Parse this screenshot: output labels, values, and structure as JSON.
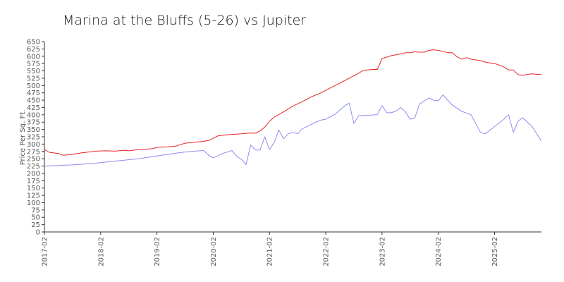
{
  "chart_data": {
    "type": "line",
    "title": "Marina at the Bluffs (5-26) vs Jupiter",
    "xlabel": "",
    "ylabel": "Price Per Sq. Ft.",
    "ylim": [
      0,
      650
    ],
    "yticks": [
      0,
      25,
      50,
      75,
      100,
      125,
      150,
      175,
      200,
      225,
      250,
      275,
      300,
      325,
      350,
      375,
      400,
      425,
      450,
      475,
      500,
      525,
      550,
      575,
      600,
      625,
      650
    ],
    "xlim": [
      "2017-02",
      "2025-12"
    ],
    "xticks": [
      "2017-02",
      "2018-02",
      "2019-02",
      "2020-02",
      "2021-02",
      "2022-02",
      "2023-02",
      "2024-02",
      "2025-02"
    ],
    "grid": false,
    "legend": "none",
    "series": [
      {
        "color": "#e8242a",
        "points": [
          [
            "2017-02",
            282
          ],
          [
            "2017-03",
            272
          ],
          [
            "2017-05",
            268
          ],
          [
            "2017-06",
            262
          ],
          [
            "2017-08",
            265
          ],
          [
            "2017-10",
            270
          ],
          [
            "2018-01",
            276
          ],
          [
            "2018-03",
            277
          ],
          [
            "2018-05",
            276
          ],
          [
            "2018-07",
            279
          ],
          [
            "2018-08",
            277
          ],
          [
            "2018-10",
            281
          ],
          [
            "2019-01",
            284
          ],
          [
            "2019-02",
            289
          ],
          [
            "2019-04",
            290
          ],
          [
            "2019-06",
            293
          ],
          [
            "2019-08",
            303
          ],
          [
            "2019-11",
            308
          ],
          [
            "2020-01",
            312
          ],
          [
            "2020-03",
            328
          ],
          [
            "2020-05",
            332
          ],
          [
            "2020-08",
            335
          ],
          [
            "2020-10",
            338
          ],
          [
            "2020-11",
            337
          ],
          [
            "2020-12",
            345
          ],
          [
            "2021-01",
            358
          ],
          [
            "2021-02",
            378
          ],
          [
            "2021-03",
            392
          ],
          [
            "2021-05",
            410
          ],
          [
            "2021-07",
            430
          ],
          [
            "2021-09",
            445
          ],
          [
            "2021-11",
            462
          ],
          [
            "2022-01",
            475
          ],
          [
            "2022-03",
            492
          ],
          [
            "2022-05",
            508
          ],
          [
            "2022-07",
            525
          ],
          [
            "2022-09",
            542
          ],
          [
            "2022-10",
            552
          ],
          [
            "2022-12",
            555
          ],
          [
            "2023-01",
            555
          ],
          [
            "2023-02",
            592
          ],
          [
            "2023-03",
            597
          ],
          [
            "2023-04",
            602
          ],
          [
            "2023-05",
            605
          ],
          [
            "2023-06",
            608
          ],
          [
            "2023-07",
            612
          ],
          [
            "2023-08",
            612
          ],
          [
            "2023-09",
            615
          ],
          [
            "2023-10",
            614
          ],
          [
            "2023-11",
            614
          ],
          [
            "2023-12",
            620
          ],
          [
            "2024-01",
            622
          ],
          [
            "2024-02",
            620
          ],
          [
            "2024-03",
            617
          ],
          [
            "2024-04",
            612
          ],
          [
            "2024-05",
            612
          ],
          [
            "2024-06",
            598
          ],
          [
            "2024-07",
            590
          ],
          [
            "2024-08",
            595
          ],
          [
            "2024-09",
            590
          ],
          [
            "2024-11",
            585
          ],
          [
            "2024-12",
            580
          ],
          [
            "2025-01",
            577
          ],
          [
            "2025-02",
            575
          ],
          [
            "2025-03",
            570
          ],
          [
            "2025-04",
            563
          ],
          [
            "2025-05",
            553
          ],
          [
            "2025-06",
            553
          ],
          [
            "2025-07",
            537
          ],
          [
            "2025-08",
            535
          ],
          [
            "2025-09",
            538
          ],
          [
            "2025-10",
            540
          ],
          [
            "2025-12",
            537
          ]
        ]
      },
      {
        "color": "#8c8cf2",
        "points": [
          [
            "2017-02",
            225
          ],
          [
            "2017-05",
            227
          ],
          [
            "2017-08",
            229
          ],
          [
            "2017-10",
            231
          ],
          [
            "2018-01",
            235
          ],
          [
            "2018-04",
            240
          ],
          [
            "2018-07",
            245
          ],
          [
            "2018-10",
            250
          ],
          [
            "2019-01",
            257
          ],
          [
            "2019-04",
            264
          ],
          [
            "2019-07",
            271
          ],
          [
            "2019-10",
            276
          ],
          [
            "2019-12",
            278
          ],
          [
            "2020-01",
            262
          ],
          [
            "2020-02",
            253
          ],
          [
            "2020-04",
            268
          ],
          [
            "2020-06",
            278
          ],
          [
            "2020-07",
            258
          ],
          [
            "2020-08",
            248
          ],
          [
            "2020-09",
            230
          ],
          [
            "2020-10",
            297
          ],
          [
            "2020-11",
            280
          ],
          [
            "2020-12",
            280
          ],
          [
            "2021-01",
            325
          ],
          [
            "2021-02",
            282
          ],
          [
            "2021-03",
            305
          ],
          [
            "2021-04",
            348
          ],
          [
            "2021-05",
            318
          ],
          [
            "2021-06",
            335
          ],
          [
            "2021-07",
            340
          ],
          [
            "2021-08",
            335
          ],
          [
            "2021-09",
            352
          ],
          [
            "2021-11",
            368
          ],
          [
            "2022-01",
            382
          ],
          [
            "2022-02",
            385
          ],
          [
            "2022-04",
            402
          ],
          [
            "2022-06",
            430
          ],
          [
            "2022-07",
            440
          ],
          [
            "2022-08",
            370
          ],
          [
            "2022-09",
            397
          ],
          [
            "2022-10",
            398
          ],
          [
            "2023-01",
            400
          ],
          [
            "2023-02",
            432
          ],
          [
            "2023-03",
            407
          ],
          [
            "2023-04",
            407
          ],
          [
            "2023-05",
            413
          ],
          [
            "2023-06",
            425
          ],
          [
            "2023-07",
            410
          ],
          [
            "2023-08",
            385
          ],
          [
            "2023-09",
            390
          ],
          [
            "2023-10",
            437
          ],
          [
            "2023-12",
            458
          ],
          [
            "2024-01",
            450
          ],
          [
            "2024-02",
            448
          ],
          [
            "2024-03",
            468
          ],
          [
            "2024-05",
            433
          ],
          [
            "2024-07",
            412
          ],
          [
            "2024-09",
            400
          ],
          [
            "2024-11",
            340
          ],
          [
            "2024-12",
            335
          ],
          [
            "2025-02",
            360
          ],
          [
            "2025-04",
            385
          ],
          [
            "2025-05",
            400
          ],
          [
            "2025-06",
            340
          ],
          [
            "2025-07",
            378
          ],
          [
            "2025-08",
            390
          ],
          [
            "2025-10",
            360
          ],
          [
            "2025-12",
            310
          ]
        ]
      }
    ]
  }
}
